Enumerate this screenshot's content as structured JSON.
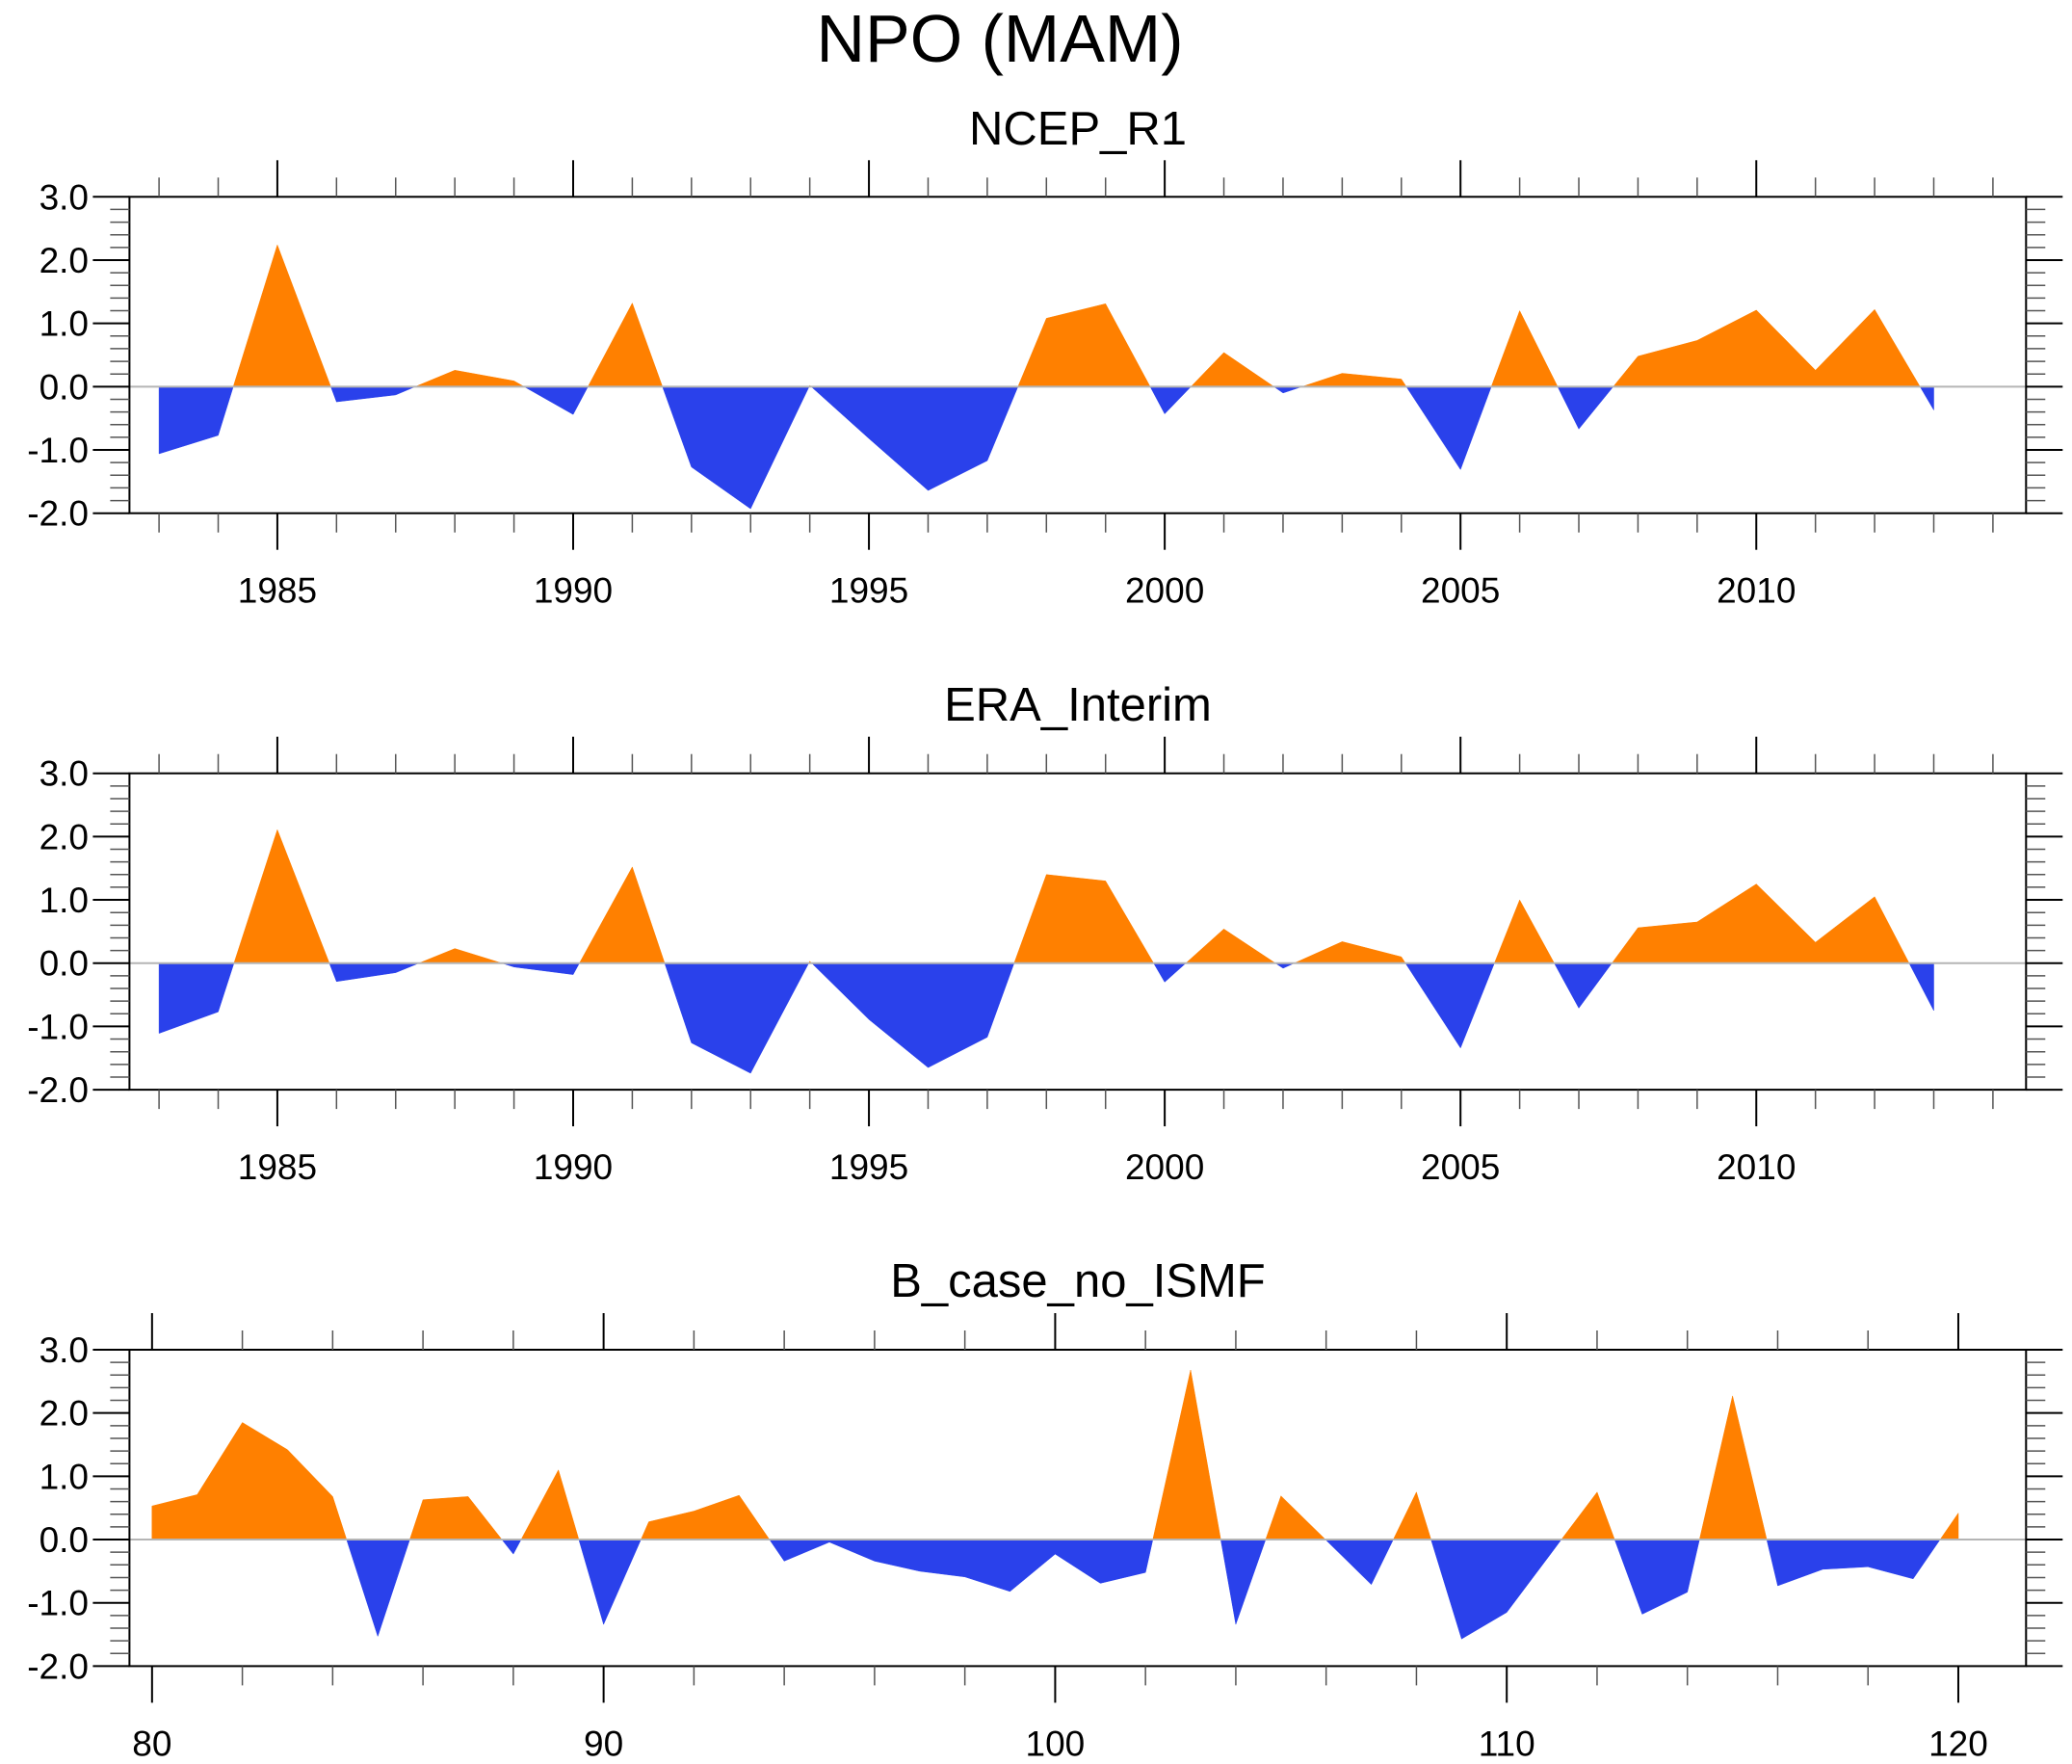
{
  "figure_title": "NPO (MAM)",
  "colors": {
    "positive": "#FF8000",
    "negative": "#2A41EB",
    "zero_line": "#B5B5B5"
  },
  "chart_data": [
    {
      "type": "area",
      "title": "NCEP_R1",
      "xlabel": "",
      "ylabel": "",
      "ylim": [
        -2.0,
        3.0
      ],
      "xlim": [
        1982.5,
        2014.56
      ],
      "yticks": [
        "3.0",
        "2.0",
        "1.0",
        "0.0",
        "-1.0",
        "-2.0"
      ],
      "ytick_values": [
        3,
        2,
        1,
        0,
        -1,
        -2
      ],
      "y_minor_step": 0.2,
      "xticks": [
        "1985",
        "1990",
        "1995",
        "2000",
        "2005",
        "2010"
      ],
      "xtick_values": [
        1985,
        1990,
        1995,
        2000,
        2005,
        2010
      ],
      "x_minor_step": 1,
      "reference_line": 0,
      "grid": false,
      "x": [
        1983,
        1984,
        1985,
        1986,
        1987,
        1988,
        1989,
        1990,
        1991,
        1992,
        1993,
        1994,
        1995,
        1996,
        1997,
        1998,
        1999,
        2000,
        2001,
        2002,
        2003,
        2004,
        2005,
        2006,
        2007,
        2008,
        2009,
        2010,
        2011,
        2012,
        2013
      ],
      "values": [
        -1.06,
        -0.77,
        2.24,
        -0.24,
        -0.13,
        0.26,
        0.09,
        -0.44,
        1.32,
        -1.27,
        -1.93,
        0.02,
        -0.82,
        -1.64,
        -1.17,
        1.08,
        1.31,
        -0.43,
        0.54,
        -0.1,
        0.21,
        0.12,
        -1.31,
        1.2,
        -0.67,
        0.48,
        0.73,
        1.21,
        0.26,
        1.22,
        -0.37
      ]
    },
    {
      "type": "area",
      "title": "ERA_Interim",
      "xlabel": "",
      "ylabel": "",
      "ylim": [
        -2.0,
        3.0
      ],
      "xlim": [
        1982.5,
        2014.56
      ],
      "yticks": [
        "3.0",
        "2.0",
        "1.0",
        "0.0",
        "-1.0",
        "-2.0"
      ],
      "ytick_values": [
        3,
        2,
        1,
        0,
        -1,
        -2
      ],
      "y_minor_step": 0.2,
      "xticks": [
        "1985",
        "1990",
        "1995",
        "2000",
        "2005",
        "2010"
      ],
      "xtick_values": [
        1985,
        1990,
        1995,
        2000,
        2005,
        2010
      ],
      "x_minor_step": 1,
      "reference_line": 0,
      "grid": false,
      "x": [
        1983,
        1984,
        1985,
        1986,
        1987,
        1988,
        1989,
        1990,
        1991,
        1992,
        1993,
        1994,
        1995,
        1996,
        1997,
        1998,
        1999,
        2000,
        2001,
        2002,
        2003,
        2004,
        2005,
        2006,
        2007,
        2008,
        2009,
        2010,
        2011,
        2012,
        2013
      ],
      "values": [
        -1.11,
        -0.77,
        2.11,
        -0.29,
        -0.15,
        0.23,
        -0.06,
        -0.18,
        1.52,
        -1.26,
        -1.74,
        0.03,
        -0.89,
        -1.65,
        -1.17,
        1.4,
        1.3,
        -0.3,
        0.54,
        -0.08,
        0.34,
        0.1,
        -1.34,
        1.0,
        -0.71,
        0.56,
        0.65,
        1.25,
        0.33,
        1.05,
        -0.75
      ]
    },
    {
      "type": "area",
      "title": "B_case_no_ISMF",
      "xlabel": "",
      "ylabel": "",
      "ylim": [
        -2.0,
        3.0
      ],
      "xlim": [
        79.5,
        121.5
      ],
      "yticks": [
        "3.0",
        "2.0",
        "1.0",
        "0.0",
        "-1.0",
        "-2.0"
      ],
      "ytick_values": [
        3,
        2,
        1,
        0,
        -1,
        -2
      ],
      "y_minor_step": 0.2,
      "xticks": [
        "80",
        "90",
        "100",
        "110",
        "120"
      ],
      "xtick_values": [
        80,
        90,
        100,
        110,
        120
      ],
      "x_minor_step": 2,
      "reference_line": 0,
      "grid": false,
      "x": [
        80,
        81,
        82,
        83,
        84,
        85,
        86,
        87,
        88,
        89,
        90,
        91,
        92,
        93,
        94,
        95,
        96,
        97,
        98,
        99,
        100,
        101,
        102,
        103,
        104,
        105,
        106,
        107,
        108,
        109,
        110,
        111,
        112,
        113,
        114,
        115,
        116,
        117,
        118,
        119,
        120
      ],
      "values": [
        0.53,
        0.71,
        1.85,
        1.42,
        0.68,
        -1.53,
        0.63,
        0.68,
        -0.23,
        1.1,
        -1.34,
        0.28,
        0.45,
        0.7,
        -0.34,
        -0.04,
        -0.34,
        -0.5,
        -0.59,
        -0.82,
        -0.23,
        -0.69,
        -0.52,
        2.68,
        -1.34,
        0.69,
        -0.01,
        -0.71,
        0.75,
        -1.57,
        -1.15,
        -0.2,
        0.75,
        -1.18,
        -0.83,
        2.27,
        -0.73,
        -0.47,
        -0.43,
        -0.62,
        0.42
      ]
    }
  ]
}
